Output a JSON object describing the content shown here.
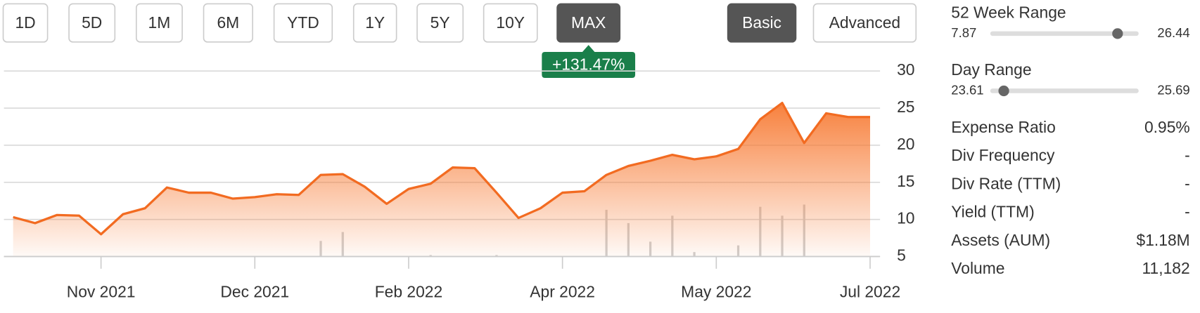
{
  "range_buttons": [
    "1D",
    "5D",
    "1M",
    "6M",
    "YTD",
    "1Y",
    "5Y",
    "10Y",
    "MAX"
  ],
  "selected_range": "MAX",
  "mode_buttons": [
    "Basic",
    "Advanced"
  ],
  "selected_mode": "Basic",
  "change_label": "+131.47%",
  "chart_data": {
    "type": "line",
    "categories": [
      null,
      null,
      null,
      null,
      "Nov 2021",
      null,
      null,
      null,
      null,
      null,
      null,
      "Dec 2021",
      null,
      null,
      null,
      null,
      null,
      null,
      "Feb 2022",
      null,
      null,
      null,
      null,
      null,
      null,
      "Apr 2022",
      null,
      null,
      null,
      null,
      null,
      null,
      "May 2022",
      null,
      null,
      null,
      null,
      null,
      null,
      "Jul 2022"
    ],
    "values": [
      10.3,
      9.5,
      10.6,
      10.5,
      8.0,
      10.7,
      11.5,
      14.3,
      13.6,
      13.6,
      12.8,
      13.0,
      13.4,
      13.3,
      16.0,
      16.1,
      14.4,
      12.1,
      14.1,
      14.8,
      17.0,
      16.9,
      13.6,
      10.2,
      11.5,
      13.6,
      13.8,
      16.0,
      17.2,
      17.9,
      18.7,
      18.1,
      18.5,
      19.5,
      23.5,
      25.7,
      20.3,
      24.3,
      23.8,
      23.8
    ],
    "volume": [
      null,
      null,
      null,
      null,
      null,
      null,
      null,
      null,
      null,
      null,
      null,
      null,
      null,
      null,
      7.1,
      8.3,
      null,
      null,
      null,
      5.2,
      null,
      null,
      5.2,
      null,
      null,
      null,
      null,
      11.3,
      9.5,
      7.0,
      10.5,
      5.6,
      null,
      6.5,
      11.7,
      10.5,
      12.0,
      null,
      null,
      null
    ],
    "color": "#f26b21",
    "volume_color": "#cfcfcf",
    "ylim": [
      5,
      30
    ],
    "yticks": [
      5,
      10,
      15,
      20,
      25,
      30
    ],
    "grid": true
  },
  "stats": {
    "week52": {
      "label": "52 Week Range",
      "low": 7.87,
      "high": 26.44
    },
    "day": {
      "label": "Day Range",
      "low": 23.61,
      "high": 25.69
    },
    "rows": [
      [
        "Expense Ratio",
        "0.95%"
      ],
      [
        "Div Frequency",
        "-"
      ],
      [
        "Div Rate (TTM)",
        "-"
      ],
      [
        "Yield (TTM)",
        "-"
      ],
      [
        "Assets (AUM)",
        "$1.18M"
      ],
      [
        "Volume",
        "11,182"
      ]
    ]
  }
}
